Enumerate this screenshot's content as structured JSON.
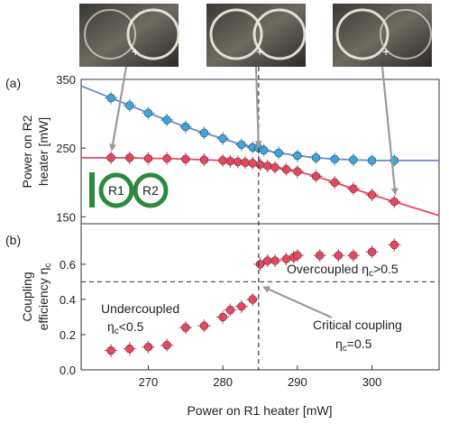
{
  "chart_data": [
    {
      "type": "scatter",
      "panel_label": "(a)",
      "ylabel": "Power on R2 heater [mW]",
      "ylabel_lines": [
        "Power on R2",
        "heater [mW]"
      ],
      "xlim": [
        261,
        309
      ],
      "ylim": [
        140,
        350
      ],
      "yticks": [
        150,
        250,
        350
      ],
      "series": [
        {
          "color": "#3aa6dd",
          "line_color": "#6f86c8",
          "x": [
            265,
            267.5,
            270,
            272.5,
            275,
            277.5,
            280,
            282.5,
            284,
            284.8,
            285.5,
            287.5,
            290,
            292.5,
            295,
            297.5,
            300,
            303
          ],
          "y": [
            323,
            312,
            301,
            291,
            281,
            272,
            264,
            255,
            251,
            250,
            247,
            243,
            239,
            236,
            234,
            233,
            232,
            232
          ]
        },
        {
          "color": "#e8455f",
          "line_color": "#e8455f",
          "x": [
            265,
            267.5,
            270,
            272.5,
            275,
            277.5,
            280,
            281,
            282,
            283,
            284,
            285,
            286,
            287,
            288.5,
            290,
            292.5,
            295,
            297.5,
            300,
            303
          ],
          "y": [
            236,
            236,
            235,
            235,
            234,
            233,
            232,
            231,
            230,
            229,
            228,
            226,
            224,
            222,
            219,
            216,
            209,
            200,
            191,
            182,
            172
          ]
        }
      ],
      "inset_labels": [
        "R1",
        "R2"
      ]
    },
    {
      "type": "scatter",
      "panel_label": "(b)",
      "xlabel": "Power on R1 heater [mW]",
      "ylabel": "Coupling efficiency ηc",
      "ylabel_lines": [
        "Coupling",
        "efficiency η"
      ],
      "ylabel_sub": "c",
      "xlim": [
        261,
        309
      ],
      "ylim": [
        0,
        0.83
      ],
      "xticks": [
        270,
        280,
        290,
        300
      ],
      "yticks": [
        0.0,
        0.2,
        0.4,
        0.6
      ],
      "ytick_labels": [
        "0.0",
        "0.2",
        "0.4",
        "0.6"
      ],
      "threshold": 0.5,
      "series": [
        {
          "color": "#e8455f",
          "x": [
            265,
            267.5,
            270,
            272.5,
            275,
            277.5,
            280,
            281,
            282.5,
            284,
            285,
            286,
            287,
            288.5,
            289.5,
            290,
            293,
            295.5,
            297.5,
            300,
            303
          ],
          "y": [
            0.11,
            0.12,
            0.13,
            0.14,
            0.24,
            0.25,
            0.3,
            0.34,
            0.36,
            0.4,
            0.6,
            0.62,
            0.62,
            0.63,
            0.64,
            0.65,
            0.65,
            0.65,
            0.65,
            0.67,
            0.71
          ]
        }
      ],
      "annotations": {
        "overcoupled": "Overcoupled η",
        "overcoupled_sub": "c",
        "overcoupled_tail": ">0.5",
        "undercoupled_l1": "Undercoupled",
        "undercoupled_l2a": "η",
        "undercoupled_l2sub": "c",
        "undercoupled_l2b": "<0.5",
        "critical_l1": "Critical coupling",
        "critical_l2a": "η",
        "critical_l2sub": "c",
        "critical_l2b": "=0.5"
      }
    }
  ],
  "vertical_marker_x": 284.8
}
